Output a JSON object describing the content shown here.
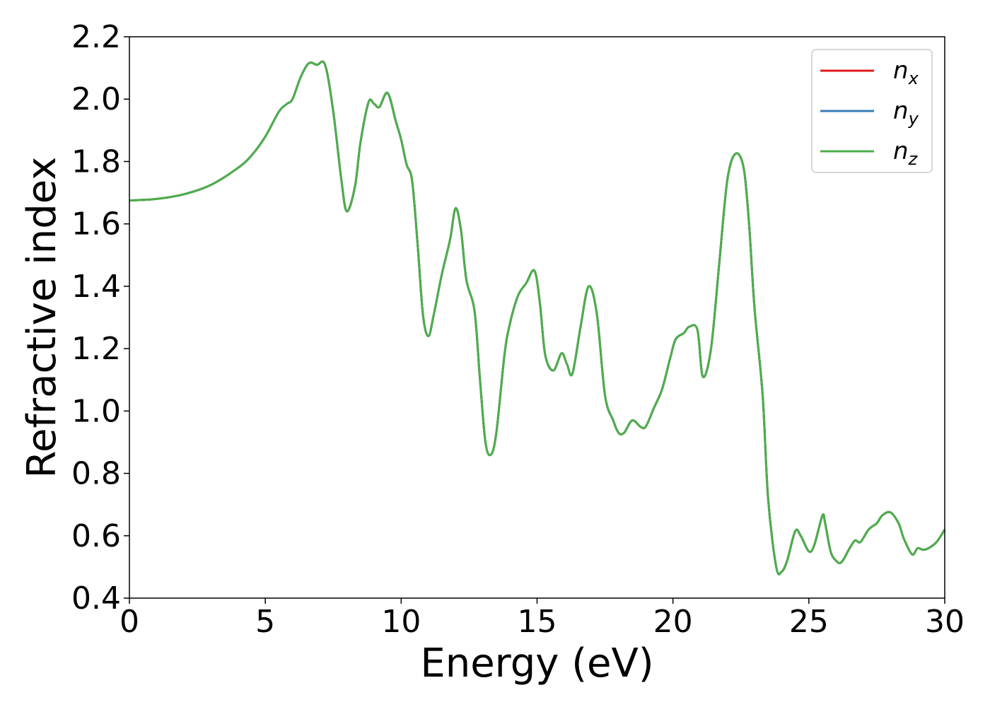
{
  "chart_data": {
    "type": "line",
    "title": "",
    "xlabel": "Energy (eV)",
    "ylabel": "Refractive index",
    "xlim": [
      0,
      30
    ],
    "ylim": [
      0.4,
      2.2
    ],
    "xticks": [
      "0",
      "5",
      "10",
      "15",
      "20",
      "25",
      "30"
    ],
    "yticks": [
      "0.4",
      "0.6",
      "0.8",
      "1.0",
      "1.2",
      "1.4",
      "1.6",
      "1.8",
      "2.0",
      "2.2"
    ],
    "grid": false,
    "legend_position": "top-right",
    "colors": {
      "n_x": "#e41a1c",
      "n_y": "#377eb8",
      "n_z": "#4daf4a"
    },
    "series": [
      {
        "name": "n",
        "subscript": "x",
        "key": "n_x"
      },
      {
        "name": "n",
        "subscript": "y",
        "key": "n_y"
      },
      {
        "name": "n",
        "subscript": "z",
        "key": "n_z"
      }
    ],
    "x": [
      0,
      1,
      2,
      3,
      4,
      4.5,
      5,
      5.5,
      5.8,
      6.0,
      6.3,
      6.6,
      6.9,
      7.2,
      7.5,
      7.8,
      8.0,
      8.3,
      8.5,
      8.8,
      9.0,
      9.2,
      9.5,
      9.8,
      10.0,
      10.2,
      10.4,
      10.6,
      10.8,
      11.0,
      11.2,
      11.5,
      11.8,
      12.0,
      12.2,
      12.4,
      12.7,
      12.9,
      13.1,
      13.3,
      13.5,
      13.8,
      14.0,
      14.3,
      14.6,
      14.9,
      15.1,
      15.3,
      15.6,
      15.9,
      16.1,
      16.3,
      16.6,
      16.9,
      17.2,
      17.5,
      17.8,
      18.0,
      18.2,
      18.5,
      18.8,
      19.0,
      19.3,
      19.6,
      19.9,
      20.1,
      20.4,
      20.6,
      20.9,
      21.1,
      21.4,
      21.7,
      22.0,
      22.3,
      22.6,
      22.8,
      23.0,
      23.3,
      23.5,
      23.8,
      24.0,
      24.2,
      24.5,
      24.7,
      25.0,
      25.2,
      25.5,
      25.6,
      25.8,
      26.0,
      26.2,
      26.5,
      26.7,
      26.9,
      27.2,
      27.5,
      27.7,
      28.0,
      28.3,
      28.5,
      28.8,
      29.0,
      29.2,
      29.4,
      29.7,
      30.0
    ],
    "y": [
      1.675,
      1.68,
      1.695,
      1.725,
      1.78,
      1.82,
      1.88,
      1.96,
      1.985,
      2.0,
      2.07,
      2.115,
      2.11,
      2.11,
      1.96,
      1.74,
      1.64,
      1.72,
      1.86,
      1.99,
      1.985,
      1.975,
      2.02,
      1.93,
      1.87,
      1.79,
      1.74,
      1.54,
      1.31,
      1.24,
      1.31,
      1.44,
      1.55,
      1.65,
      1.58,
      1.42,
      1.32,
      1.1,
      0.9,
      0.86,
      0.93,
      1.18,
      1.28,
      1.37,
      1.41,
      1.45,
      1.35,
      1.18,
      1.13,
      1.185,
      1.15,
      1.12,
      1.27,
      1.4,
      1.31,
      1.05,
      0.97,
      0.93,
      0.93,
      0.97,
      0.95,
      0.95,
      1.01,
      1.07,
      1.17,
      1.23,
      1.25,
      1.27,
      1.26,
      1.11,
      1.2,
      1.47,
      1.74,
      1.825,
      1.78,
      1.6,
      1.33,
      1.05,
      0.72,
      0.5,
      0.485,
      0.52,
      0.615,
      0.6,
      0.55,
      0.57,
      0.665,
      0.64,
      0.55,
      0.52,
      0.515,
      0.56,
      0.585,
      0.58,
      0.62,
      0.64,
      0.665,
      0.675,
      0.64,
      0.59,
      0.54,
      0.56,
      0.555,
      0.56,
      0.58,
      0.62
    ]
  }
}
